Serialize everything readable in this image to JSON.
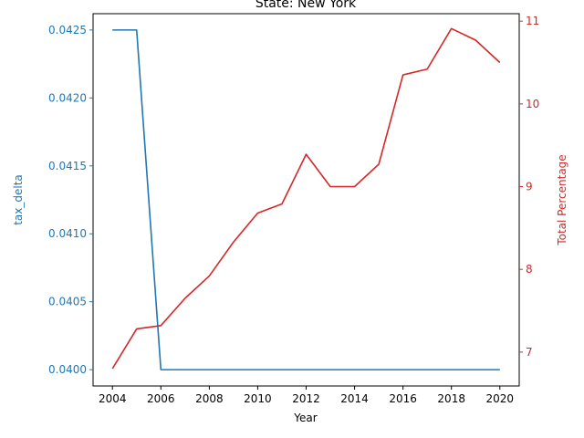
{
  "chart_data": {
    "type": "line",
    "title": "State: New York",
    "xlabel": "Year",
    "ylabel_left": "tax_delta",
    "ylabel_right": "Total Percentage",
    "x": [
      2004,
      2005,
      2006,
      2007,
      2008,
      2009,
      2010,
      2011,
      2012,
      2013,
      2014,
      2015,
      2016,
      2017,
      2018,
      2019,
      2020
    ],
    "x_ticks": [
      "2004",
      "2006",
      "2008",
      "2010",
      "2012",
      "2014",
      "2016",
      "2018",
      "2020"
    ],
    "xlim": [
      2003.2,
      2020.8
    ],
    "left_axis": {
      "ylim": [
        0.03988,
        0.04262
      ],
      "ticks": [
        "0.0400",
        "0.0405",
        "0.0410",
        "0.0415",
        "0.0420",
        "0.0425"
      ],
      "color": "#1f77b4"
    },
    "right_axis": {
      "ylim": [
        6.59,
        11.09
      ],
      "ticks": [
        "7",
        "8",
        "9",
        "10",
        "11"
      ],
      "color": "#d62728"
    },
    "series": [
      {
        "axis": "left",
        "color": "#1f77b4",
        "values": [
          0.0425,
          0.0425,
          0.04,
          0.04,
          0.04,
          0.04,
          0.04,
          0.04,
          0.04,
          0.04,
          0.04,
          0.04,
          0.04,
          0.04,
          0.04,
          0.04,
          0.04
        ]
      },
      {
        "axis": "right",
        "color": "#d62728",
        "values": [
          6.8,
          7.28,
          7.32,
          7.65,
          7.92,
          8.33,
          8.68,
          8.79,
          9.39,
          9.0,
          9.0,
          9.27,
          10.35,
          10.42,
          10.91,
          10.77,
          10.5
        ]
      }
    ],
    "grid": false,
    "legend": "none"
  }
}
